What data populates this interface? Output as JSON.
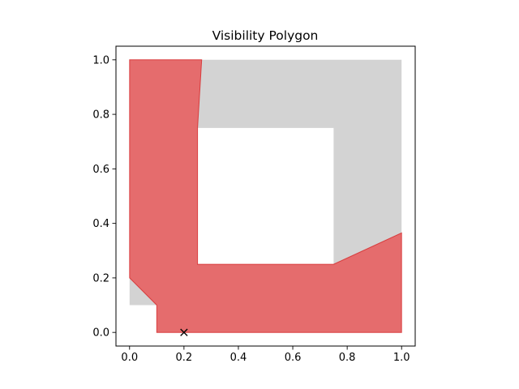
{
  "chart_data": {
    "type": "area",
    "title": "Visibility Polygon",
    "xlabel": "",
    "ylabel": "",
    "xlim": [
      -0.05,
      1.05
    ],
    "ylim": [
      -0.05,
      1.05
    ],
    "x_ticks": [
      "0.0",
      "0.2",
      "0.4",
      "0.6",
      "0.8",
      "1.0"
    ],
    "y_ticks": [
      "0.0",
      "0.2",
      "0.4",
      "0.6",
      "0.8",
      "1.0"
    ],
    "grid": false,
    "environment": {
      "outer_boundary": [
        [
          0.0,
          0.1
        ],
        [
          0.1,
          0.1
        ],
        [
          0.1,
          0.0
        ],
        [
          1.0,
          0.0
        ],
        [
          1.0,
          1.0
        ],
        [
          0.0,
          1.0
        ]
      ],
      "hole": [
        [
          0.25,
          0.25
        ],
        [
          0.75,
          0.25
        ],
        [
          0.75,
          0.75
        ],
        [
          0.25,
          0.75
        ]
      ],
      "color": "#d3d3d3"
    },
    "visibility_polygon": {
      "points": [
        [
          0.0,
          0.2
        ],
        [
          0.1,
          0.1
        ],
        [
          0.1,
          0.0
        ],
        [
          1.0,
          0.0
        ],
        [
          1.0,
          0.365
        ],
        [
          0.75,
          0.25
        ],
        [
          0.25,
          0.25
        ],
        [
          0.25,
          0.75
        ],
        [
          0.265,
          1.0
        ],
        [
          0.0,
          1.0
        ]
      ],
      "color": "#e8595b",
      "edge_color": "#d62728",
      "alpha": 0.85
    },
    "observer": {
      "x": 0.2,
      "y": 0.0,
      "marker": "x",
      "color": "#000000"
    }
  }
}
